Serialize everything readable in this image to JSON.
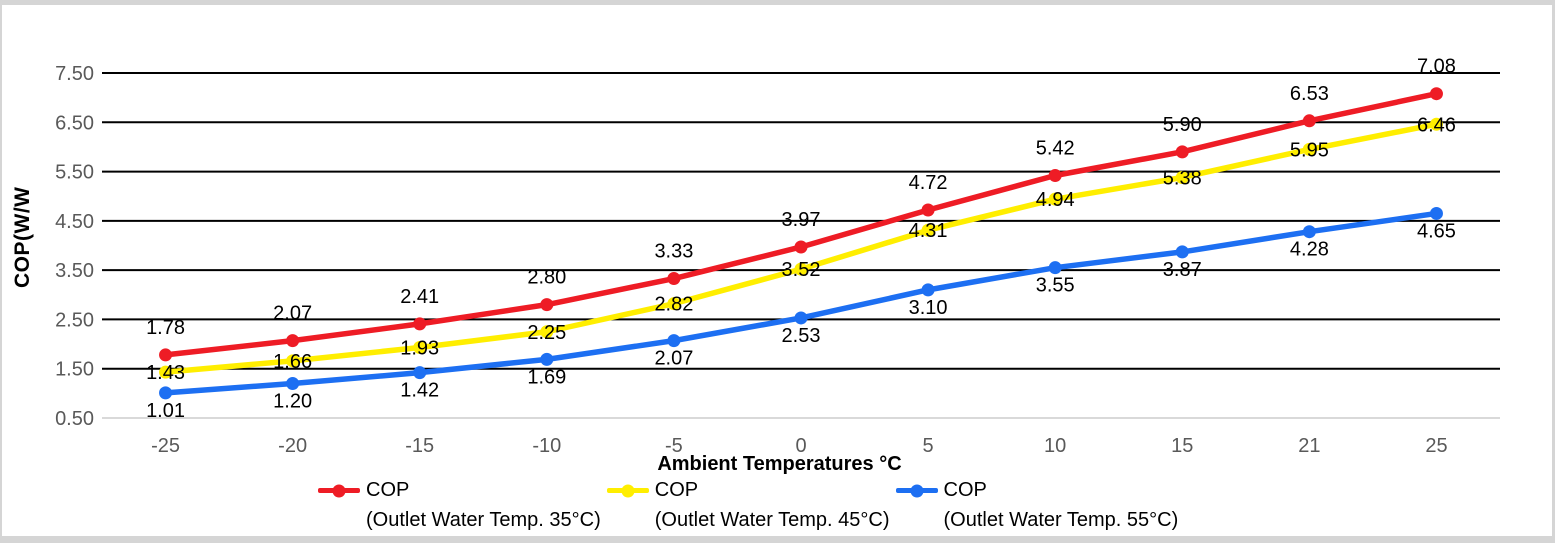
{
  "window": {
    "frame_color": "#d5d5d5",
    "background": "#ffffff"
  },
  "chart_data": {
    "type": "line",
    "xlabel": "Ambient Temperatures °C",
    "ylabel": "COP(W/W",
    "categories": [
      "-25",
      "-20",
      "-15",
      "-10",
      "-5",
      "0",
      "5",
      "10",
      "15",
      "21",
      "25"
    ],
    "y_ticks": [
      "7.50",
      "6.50",
      "5.50",
      "4.50",
      "3.50",
      "2.50",
      "1.50",
      "0.50"
    ],
    "ylim": [
      0.5,
      7.5
    ],
    "grid": "horizontal",
    "legend_position": "bottom",
    "data_labels": "shown",
    "series": [
      {
        "name": "COP",
        "sublabel": "(Outlet Water Temp. 35°C)",
        "color": "#ee1c25",
        "label_position": "above",
        "values": [
          1.78,
          2.07,
          2.41,
          2.8,
          3.33,
          3.97,
          4.72,
          5.42,
          5.9,
          6.53,
          7.08
        ]
      },
      {
        "name": "COP",
        "sublabel": "(Outlet Water Temp. 45°C)",
        "color": "#ffee00",
        "label_position": "center",
        "values": [
          1.43,
          1.66,
          1.93,
          2.25,
          2.82,
          3.52,
          4.31,
          4.94,
          5.38,
          5.95,
          6.46
        ]
      },
      {
        "name": "COP",
        "sublabel": "(Outlet Water Temp. 55°C)",
        "color": "#1d6ff2",
        "label_position": "below",
        "values": [
          1.01,
          1.2,
          1.42,
          1.69,
          2.07,
          2.53,
          3.1,
          3.55,
          3.87,
          4.28,
          4.65
        ]
      }
    ],
    "colors": {
      "gridline": "#000000",
      "gridline_bottom": "#d9d9d9",
      "tick_label": "#595959",
      "data_label": "#000000",
      "axis_title": "#000000"
    }
  }
}
